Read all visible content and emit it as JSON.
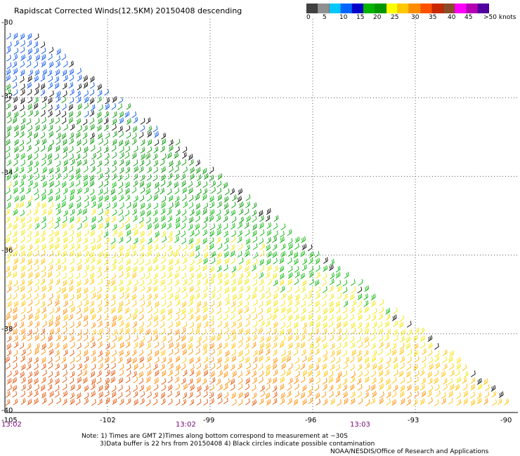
{
  "title": "Rapidscat Corrected Winds(12.5KM) 20150408 descending",
  "legend": {
    "colors": [
      "#404040",
      "#909090",
      "#00c8ff",
      "#0064ff",
      "#0000c8",
      "#00b400",
      "#009600",
      "#ffff00",
      "#ffc800",
      "#ff8c00",
      "#ff5000",
      "#c82800",
      "#8c4b28",
      "#ff00ff",
      "#b400b4",
      "#5000a0"
    ],
    "labels": [
      "0",
      "5",
      "10",
      "15",
      "20",
      "25",
      "30",
      "35",
      "40",
      "45",
      ">50 knots"
    ]
  },
  "axes": {
    "lat_labels": [
      "-30",
      "-32",
      "-34",
      "-36",
      "-38",
      "-40"
    ],
    "lon_labels": [
      "-105",
      "-102",
      "-99",
      "-96",
      "-93",
      "-90"
    ],
    "time_labels": [
      "13:02",
      "13:02",
      "13:03"
    ]
  },
  "notes": {
    "line1": "Note: 1) Times are GMT 2)Times along bottom correspond to measurement at ~30S",
    "line2": "3)Data buffer is 22 hrs from 20150408 4) Black circles indicate possible contamination",
    "credit": "NOAA/NESDIS/Office of Research and Applications"
  },
  "chart_data": {
    "type": "wind-barb-map",
    "title": "Rapidscat Corrected Winds(12.5KM) 20150408 descending",
    "x_range": [
      -105,
      -90
    ],
    "y_range": [
      -40,
      -30
    ],
    "units": "knots",
    "grid": true,
    "regions": [
      {
        "area": "north-west wedge near -30 to -33",
        "speed_kt_range": [
          10,
          15
        ],
        "color": "blue"
      },
      {
        "area": "central band -33 to -37",
        "speed_kt_range": [
          15,
          20
        ],
        "color": "green"
      },
      {
        "area": "south-central -36 to -39",
        "speed_kt_range": [
          20,
          25
        ],
        "color": "yellow"
      },
      {
        "area": "south-west -38 to -40",
        "speed_kt_range": [
          25,
          35
        ],
        "color": "orange-red"
      }
    ],
    "swath_edge": {
      "start": [
        -105,
        -30
      ],
      "end": [
        -90,
        -40
      ]
    }
  }
}
